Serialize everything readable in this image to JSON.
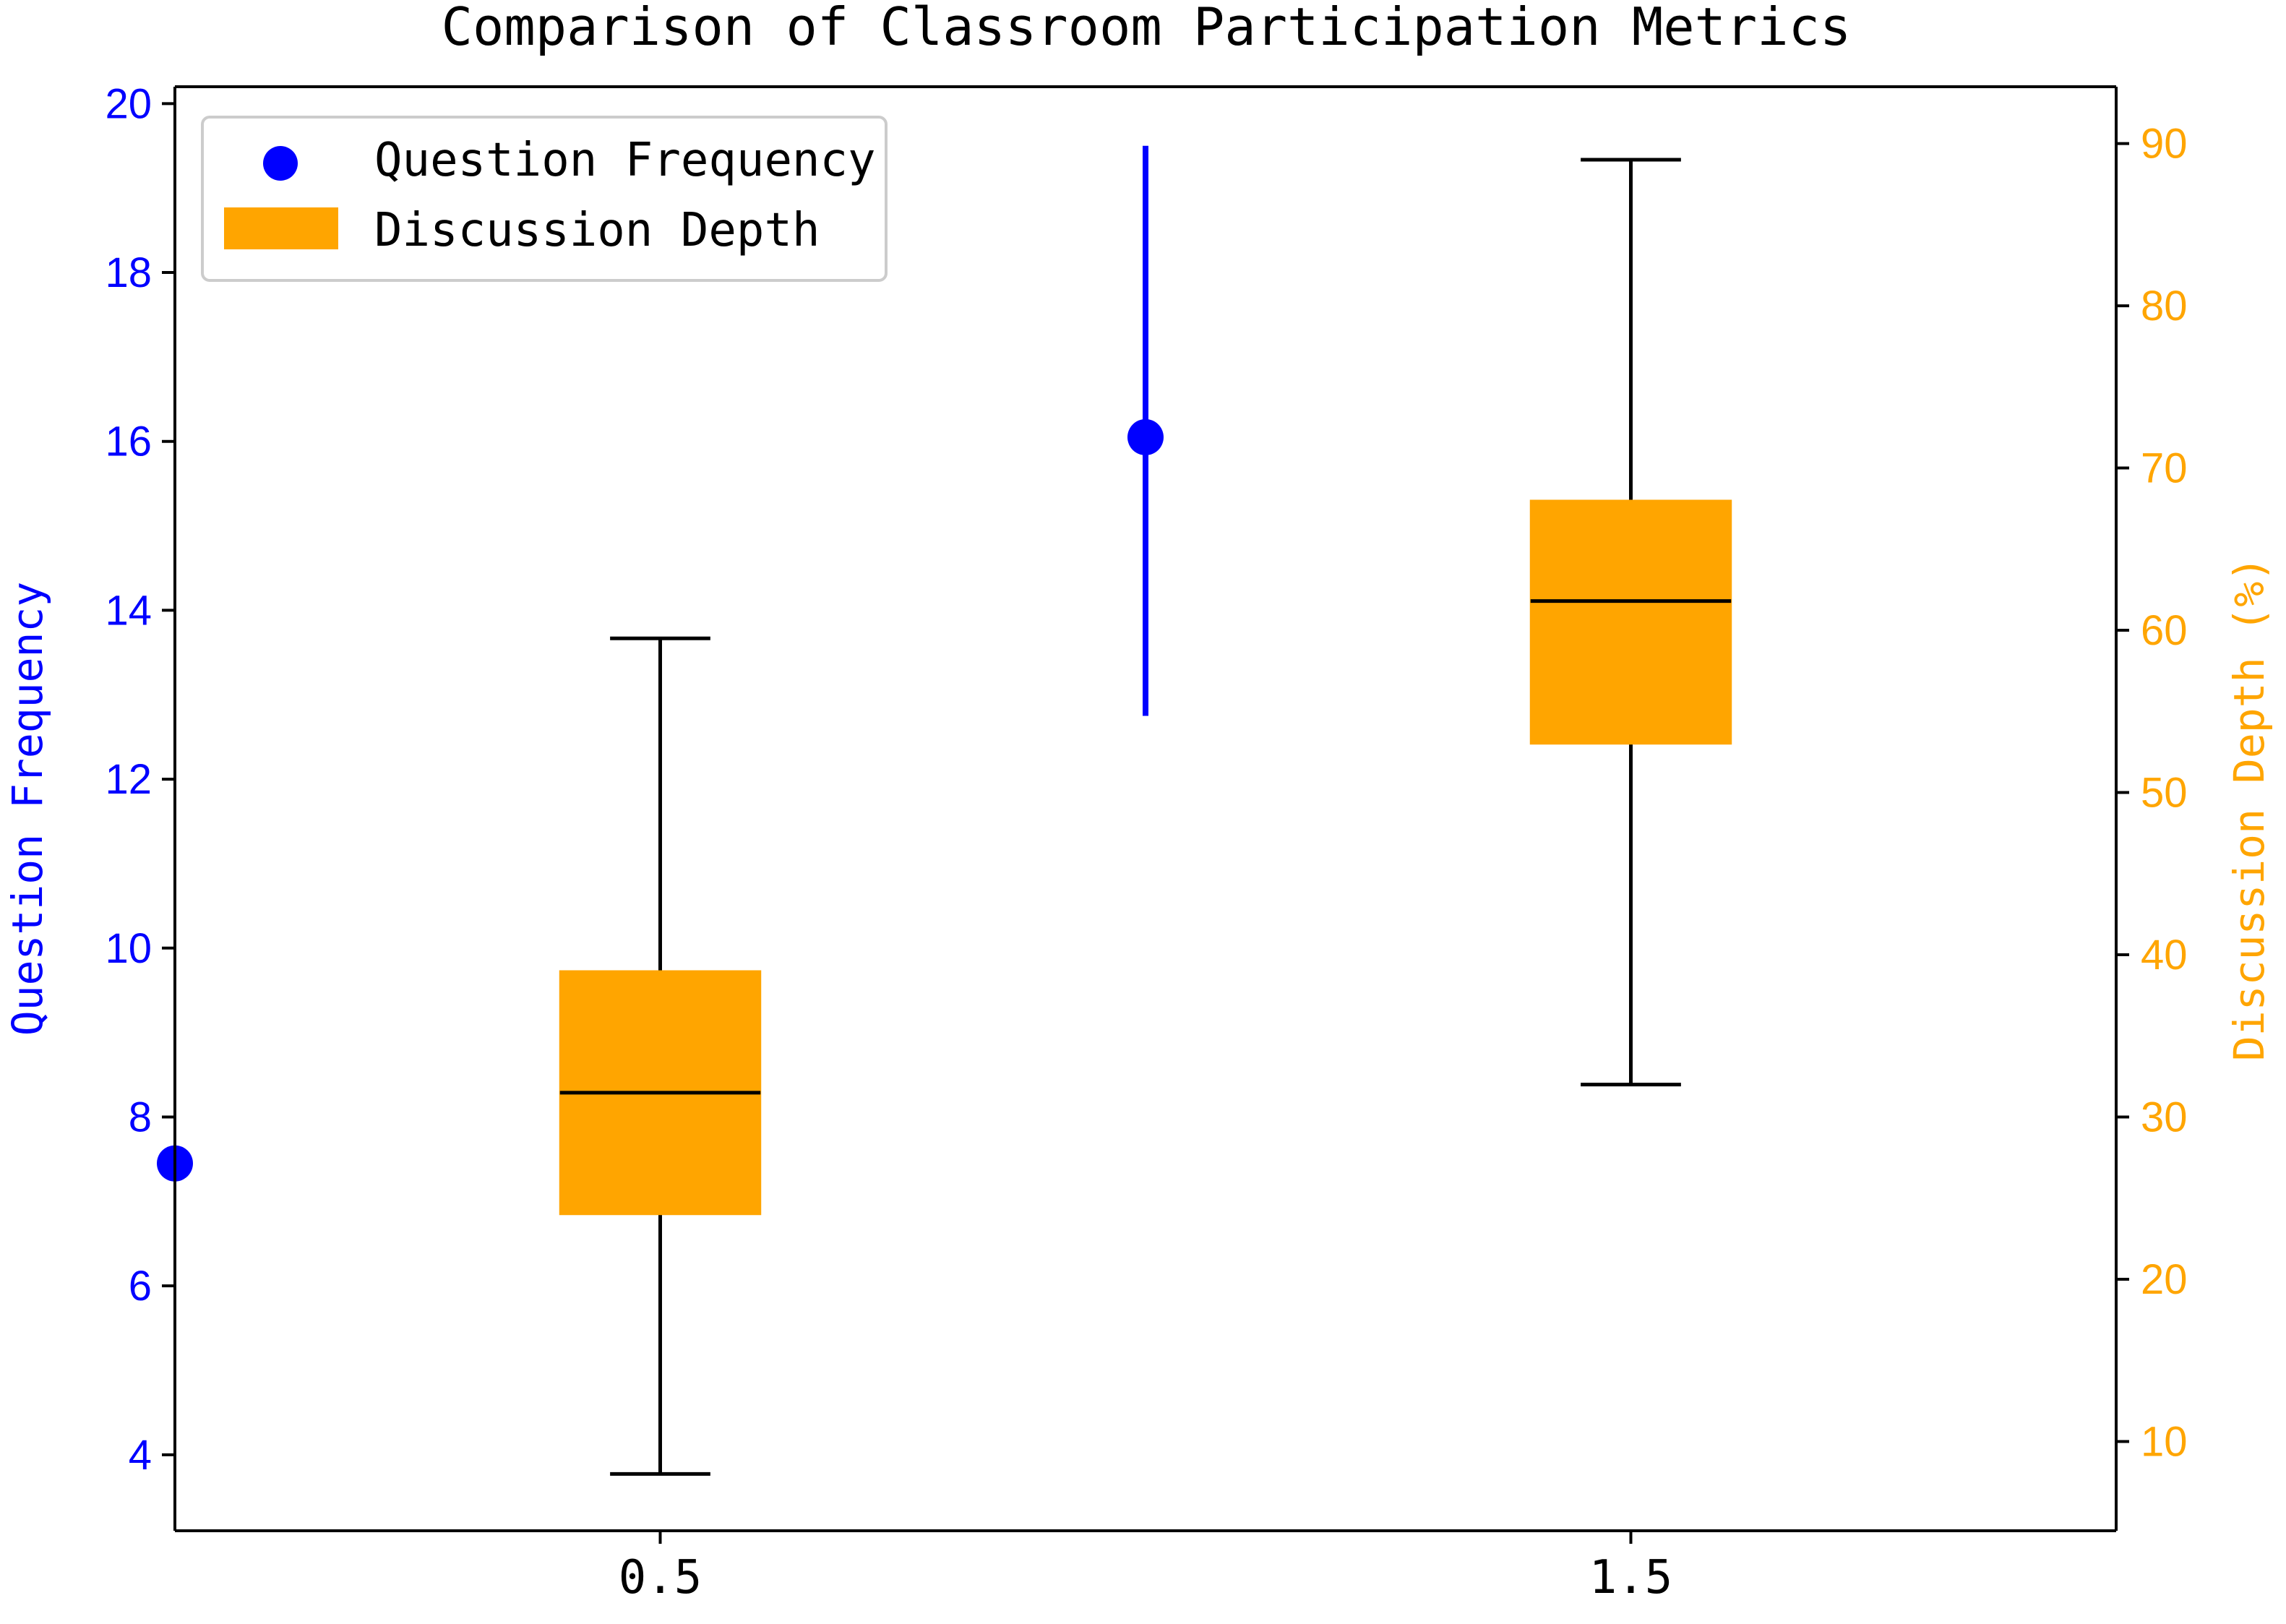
{
  "chart_data": {
    "type": "box",
    "title": "Comparison of Classroom Participation Metrics",
    "xlabel": "",
    "xticks": [
      0.5,
      1.5
    ],
    "xtick_labels": [
      "0.5",
      "1.5"
    ],
    "xlim": [
      0.0,
      2.0
    ],
    "grid": false,
    "legend_position": "top-left",
    "left_axis": {
      "label": "Question Frequency",
      "ylim": [
        3.1,
        20.2
      ],
      "ticks": [
        4,
        6,
        8,
        10,
        12,
        14,
        16,
        18,
        20
      ],
      "color": "#0000ff"
    },
    "right_axis": {
      "label": "Discussion Depth (%)",
      "ylim": [
        4.5,
        93.5
      ],
      "ticks": [
        10,
        20,
        30,
        40,
        50,
        60,
        70,
        80,
        90
      ],
      "color": "#ffa500"
    },
    "series": [
      {
        "name": "Question Frequency",
        "type": "errorbar",
        "axis": "left",
        "color": "#0000ff",
        "points": [
          {
            "x": 0.0,
            "y": 7.45,
            "err_low": null,
            "err_high": null
          },
          {
            "x": 1.0,
            "y": 16.05,
            "err_low": 12.75,
            "err_high": 19.5
          }
        ]
      },
      {
        "name": "Discussion Depth",
        "type": "box",
        "axis": "right",
        "color": "#ffa500",
        "boxes": [
          {
            "x": 0.5,
            "whisker_low": 8.0,
            "q1": 24.0,
            "median": 31.5,
            "q3": 39.0,
            "whisker_high": 59.5
          },
          {
            "x": 1.5,
            "whisker_low": 32.0,
            "q1": 53.0,
            "median": 61.8,
            "q3": 68.0,
            "whisker_high": 89.0
          }
        ]
      }
    ]
  },
  "legend": {
    "items": [
      {
        "label": "Question Frequency",
        "marker": "dot",
        "color": "#0000ff"
      },
      {
        "label": "Discussion Depth",
        "marker": "patch",
        "color": "#ffa500"
      }
    ]
  }
}
